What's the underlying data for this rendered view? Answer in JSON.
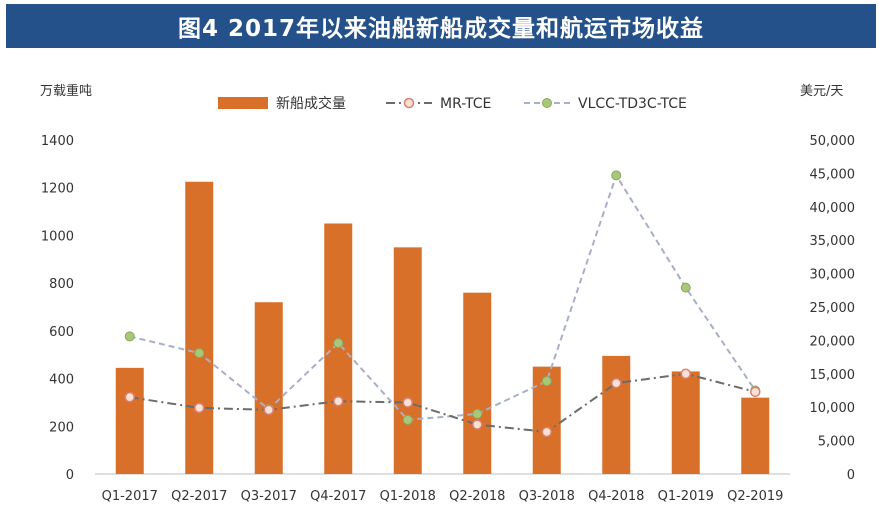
{
  "header": {
    "title": "图4 2017年以来油船新船成交量和航运市场收益"
  },
  "chart_data": {
    "type": "bar",
    "title": "图4 2017年以来油船新船成交量和航运市场收益",
    "categories": [
      "Q1-2017",
      "Q2-2017",
      "Q3-2017",
      "Q4-2017",
      "Q1-2018",
      "Q2-2018",
      "Q3-2018",
      "Q4-2018",
      "Q1-2019",
      "Q2-2019"
    ],
    "left_axis": {
      "label": "万载重吨",
      "ylim": [
        0,
        1400
      ],
      "ticks": [
        "0",
        "200",
        "400",
        "600",
        "800",
        "1000",
        "1200",
        "1400"
      ]
    },
    "right_axis": {
      "label": "美元/天",
      "ylim": [
        0,
        50000
      ],
      "ticks": [
        "0",
        "5,000",
        "10,000",
        "15,000",
        "20,000",
        "25,000",
        "30,000",
        "35,000",
        "40,000",
        "45,000",
        "50,000"
      ]
    },
    "grid": false,
    "legend_position": "top-center",
    "series": [
      {
        "name": "新船成交量",
        "type": "bar",
        "axis": "left",
        "color": "#d9702a",
        "values": [
          445,
          1225,
          720,
          1050,
          950,
          760,
          450,
          495,
          430,
          320
        ]
      },
      {
        "name": "MR-TCE",
        "type": "line",
        "axis": "right",
        "color": "#6b6b6b",
        "marker_edge": "#d98070",
        "dash": "dash-dot",
        "values": [
          11500,
          9900,
          9600,
          10900,
          10700,
          7400,
          6300,
          13600,
          15000,
          12300
        ]
      },
      {
        "name": "VLCC-TD3C-TCE",
        "type": "line",
        "axis": "right",
        "color": "#a8b0c8",
        "marker_fill": "#a8c878",
        "dash": "dashed",
        "values": [
          20600,
          18100,
          9700,
          19600,
          8100,
          9000,
          13900,
          44700,
          27900,
          12500
        ]
      }
    ]
  }
}
